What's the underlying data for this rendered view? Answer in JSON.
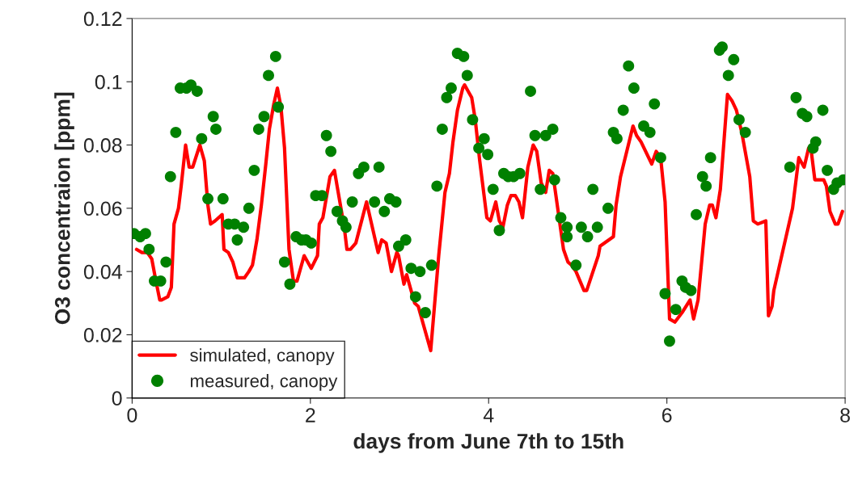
{
  "chart_data": {
    "type": "line",
    "xlabel": "days from June 7th to 15th",
    "ylabel": "O3 concentraion [ppm]",
    "xlim": [
      0,
      8
    ],
    "xticks": [
      0,
      2,
      4,
      6,
      8
    ],
    "ylim": [
      0,
      0.12
    ],
    "yticks": [
      0,
      0.02,
      0.04,
      0.06,
      0.08,
      0.1,
      0.12
    ],
    "grid": false,
    "legend": "bottom left",
    "series": [
      {
        "name": "simulated, canopy",
        "color": "#ff0000",
        "line_style": "solid",
        "x": [
          0.05,
          0.11,
          0.17,
          0.22,
          0.26,
          0.31,
          0.33,
          0.4,
          0.44,
          0.47,
          0.52,
          0.55,
          0.6,
          0.64,
          0.68,
          0.76,
          0.81,
          0.85,
          0.88,
          0.93,
          1.01,
          1.03,
          1.08,
          1.13,
          1.18,
          1.26,
          1.31,
          1.35,
          1.4,
          1.45,
          1.5,
          1.54,
          1.59,
          1.63,
          1.67,
          1.71,
          1.76,
          1.81,
          1.85,
          1.93,
          2.01,
          2.08,
          2.1,
          2.14,
          2.22,
          2.27,
          2.3,
          2.38,
          2.41,
          2.45,
          2.51,
          2.63,
          2.76,
          2.8,
          2.85,
          2.91,
          2.97,
          2.99,
          3.05,
          3.08,
          3.17,
          3.21,
          3.35,
          3.44,
          3.51,
          3.56,
          3.6,
          3.65,
          3.71,
          3.73,
          3.77,
          3.81,
          3.85,
          3.9,
          3.98,
          4.02,
          4.08,
          4.12,
          4.16,
          4.21,
          4.25,
          4.3,
          4.34,
          4.38,
          4.44,
          4.5,
          4.54,
          4.59,
          4.64,
          4.68,
          4.72,
          4.76,
          4.84,
          4.89,
          4.93,
          4.98,
          5.07,
          5.1,
          5.23,
          5.25,
          5.4,
          5.43,
          5.48,
          5.62,
          5.66,
          5.71,
          5.83,
          5.88,
          5.93,
          5.98,
          6.03,
          6.09,
          6.17,
          6.26,
          6.3,
          6.35,
          6.43,
          6.48,
          6.51,
          6.55,
          6.6,
          6.68,
          6.73,
          6.78,
          6.84,
          6.93,
          6.97,
          7.02,
          7.11,
          7.14,
          7.18,
          7.2,
          7.41,
          7.48,
          7.54,
          7.59,
          7.62,
          7.66,
          7.76,
          7.79,
          7.83,
          7.89,
          7.92,
          7.97
        ],
        "values": [
          0.047,
          0.046,
          0.046,
          0.044,
          0.038,
          0.031,
          0.031,
          0.032,
          0.035,
          0.055,
          0.06,
          0.067,
          0.08,
          0.073,
          0.073,
          0.08,
          0.075,
          0.061,
          0.055,
          0.056,
          0.058,
          0.047,
          0.046,
          0.043,
          0.038,
          0.038,
          0.04,
          0.042,
          0.05,
          0.061,
          0.074,
          0.085,
          0.093,
          0.098,
          0.092,
          0.079,
          0.047,
          0.037,
          0.037,
          0.045,
          0.041,
          0.045,
          0.055,
          0.057,
          0.07,
          0.072,
          0.067,
          0.054,
          0.047,
          0.047,
          0.049,
          0.062,
          0.046,
          0.05,
          0.049,
          0.04,
          0.046,
          0.045,
          0.036,
          0.039,
          0.03,
          0.029,
          0.015,
          0.045,
          0.065,
          0.071,
          0.081,
          0.091,
          0.098,
          0.099,
          0.097,
          0.095,
          0.088,
          0.075,
          0.057,
          0.056,
          0.062,
          0.056,
          0.054,
          0.061,
          0.064,
          0.064,
          0.062,
          0.057,
          0.073,
          0.08,
          0.078,
          0.068,
          0.065,
          0.072,
          0.071,
          0.063,
          0.047,
          0.043,
          0.042,
          0.04,
          0.034,
          0.034,
          0.045,
          0.048,
          0.051,
          0.061,
          0.07,
          0.086,
          0.083,
          0.081,
          0.074,
          0.078,
          0.076,
          0.062,
          0.025,
          0.024,
          0.027,
          0.031,
          0.025,
          0.031,
          0.055,
          0.061,
          0.061,
          0.057,
          0.066,
          0.096,
          0.094,
          0.091,
          0.084,
          0.07,
          0.056,
          0.055,
          0.056,
          0.026,
          0.029,
          0.034,
          0.06,
          0.076,
          0.073,
          0.079,
          0.078,
          0.069,
          0.069,
          0.067,
          0.059,
          0.055,
          0.055,
          0.059
        ]
      },
      {
        "name": "measured, canopy",
        "type": "scatter",
        "color": "#008000",
        "marker": "circle",
        "x": [
          0.02,
          0.09,
          0.15,
          0.19,
          0.25,
          0.32,
          0.38,
          0.43,
          0.49,
          0.54,
          0.61,
          0.66,
          0.73,
          0.78,
          0.85,
          0.91,
          0.94,
          1.02,
          1.08,
          1.15,
          1.18,
          1.25,
          1.31,
          1.37,
          1.42,
          1.48,
          1.53,
          1.61,
          1.64,
          1.71,
          1.77,
          1.84,
          1.9,
          1.95,
          2.01,
          2.06,
          2.13,
          2.18,
          2.23,
          2.3,
          2.36,
          2.4,
          2.47,
          2.54,
          2.6,
          2.72,
          2.77,
          2.83,
          2.89,
          2.96,
          2.99,
          3.07,
          3.13,
          3.18,
          3.23,
          3.29,
          3.36,
          3.42,
          3.48,
          3.53,
          3.58,
          3.65,
          3.72,
          3.76,
          3.82,
          3.89,
          3.95,
          3.99,
          4.05,
          4.12,
          4.17,
          4.22,
          4.28,
          4.35,
          4.47,
          4.52,
          4.58,
          4.64,
          4.72,
          4.74,
          4.81,
          4.88,
          4.88,
          4.98,
          5.04,
          5.11,
          5.17,
          5.22,
          5.34,
          5.4,
          5.44,
          5.51,
          5.57,
          5.63,
          5.74,
          5.81,
          5.86,
          5.93,
          5.98,
          6.03,
          6.1,
          6.17,
          6.21,
          6.27,
          6.33,
          6.4,
          6.44,
          6.49,
          6.59,
          6.62,
          6.69,
          6.75,
          6.81,
          6.88,
          7.38,
          7.45,
          7.52,
          7.57,
          7.64,
          7.67,
          7.75,
          7.8,
          7.87,
          7.91,
          7.98
        ],
        "values": [
          0.052,
          0.051,
          0.052,
          0.047,
          0.037,
          0.037,
          0.043,
          0.07,
          0.084,
          0.098,
          0.098,
          0.099,
          0.097,
          0.082,
          0.063,
          0.089,
          0.085,
          0.063,
          0.055,
          0.055,
          0.05,
          0.054,
          0.06,
          0.072,
          0.085,
          0.089,
          0.102,
          0.108,
          0.092,
          0.043,
          0.036,
          0.051,
          0.05,
          0.05,
          0.049,
          0.064,
          0.064,
          0.083,
          0.078,
          0.059,
          0.056,
          0.054,
          0.062,
          0.071,
          0.073,
          0.062,
          0.073,
          0.059,
          0.063,
          0.062,
          0.048,
          0.05,
          0.041,
          0.032,
          0.04,
          0.027,
          0.042,
          0.067,
          0.085,
          0.095,
          0.098,
          0.109,
          0.108,
          0.102,
          0.088,
          0.079,
          0.082,
          0.077,
          0.066,
          0.053,
          0.071,
          0.07,
          0.07,
          0.071,
          0.097,
          0.083,
          0.066,
          0.083,
          0.085,
          0.069,
          0.057,
          0.054,
          0.051,
          0.042,
          0.054,
          0.051,
          0.066,
          0.054,
          0.06,
          0.084,
          0.082,
          0.091,
          0.105,
          0.098,
          0.086,
          0.084,
          0.093,
          0.076,
          0.033,
          0.018,
          0.028,
          0.037,
          0.035,
          0.034,
          0.058,
          0.07,
          0.067,
          0.076,
          0.11,
          0.111,
          0.102,
          0.107,
          0.088,
          0.084,
          0.073,
          0.095,
          0.09,
          0.089,
          0.079,
          0.081,
          0.091,
          0.072,
          0.066,
          0.068,
          0.069
        ]
      }
    ]
  }
}
